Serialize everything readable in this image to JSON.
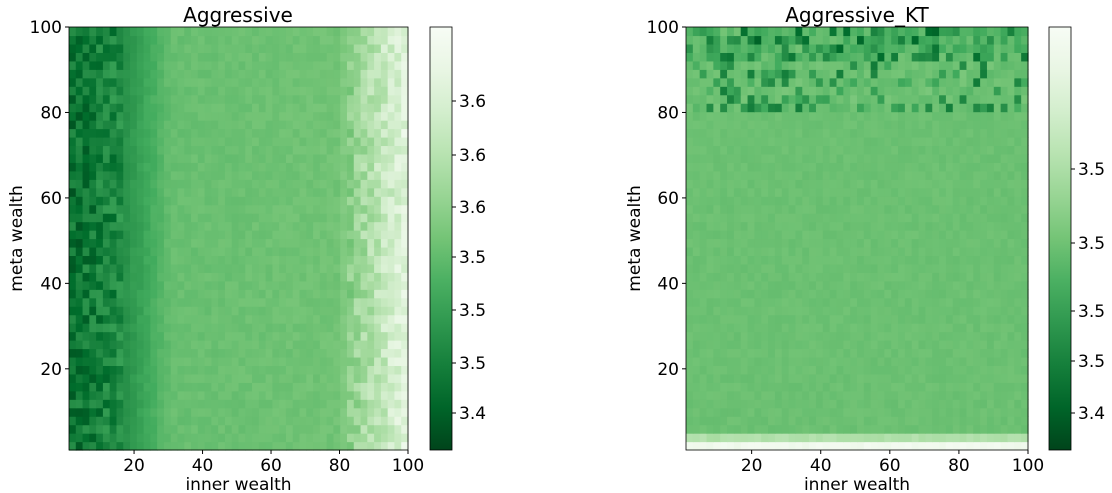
{
  "chart_data": [
    {
      "type": "heatmap",
      "title": "Aggressive",
      "xlabel": "inner wealth",
      "ylabel": "meta wealth",
      "xlim": [
        1,
        100
      ],
      "ylim": [
        1,
        100
      ],
      "x_ticks": [
        "20",
        "40",
        "60",
        "80",
        "100"
      ],
      "y_ticks": [
        "20",
        "40",
        "60",
        "80",
        "100"
      ],
      "colormap": "Greens_r",
      "colorbar_ticks": [
        "3.4",
        "3.5",
        "3.5",
        "3.5",
        "3.6",
        "3.6",
        "3.6"
      ],
      "colorbar_range": [
        3.332,
        3.63
      ],
      "pattern": "dark at low inner wealth, mid green in middle, light at high inner wealth"
    },
    {
      "type": "heatmap",
      "title": "Aggressive_KT",
      "xlabel": "inner wealth",
      "ylabel": "meta wealth",
      "xlim": [
        1,
        100
      ],
      "ylim": [
        1,
        100
      ],
      "x_ticks": [
        "20",
        "40",
        "60",
        "80",
        "100"
      ],
      "y_ticks": [
        "20",
        "40",
        "60",
        "80",
        "100"
      ],
      "colormap": "Greens_r",
      "colorbar_ticks": [
        "3.4",
        "3.5",
        "3.5",
        "3.5",
        "3.5"
      ],
      "colorbar_range": [
        3.363,
        3.598
      ],
      "pattern": "uniform mid green, darker speckle at high meta wealth, light strip at lowest meta wealth"
    }
  ]
}
